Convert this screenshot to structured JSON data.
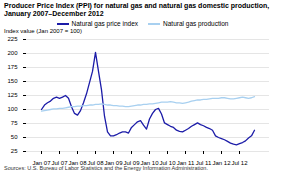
{
  "chart_data": {
    "type": "line",
    "title": "Producer Price Index (PPI) for natural gas and natural gas domestic production,",
    "subtitle": "January 2007–December 2012",
    "ylabel": "Index value (Jan 2007 = 100)",
    "source": "Sources:  U.S. Bureau of Labor Statistics and the Energy Information Administration.",
    "categories": [
      "Jan 07",
      null,
      null,
      null,
      null,
      null,
      "Jul 07",
      null,
      null,
      null,
      null,
      null,
      "Jan 08",
      null,
      null,
      null,
      null,
      null,
      "Jul 08",
      null,
      null,
      null,
      null,
      null,
      "Jan 09",
      null,
      null,
      null,
      null,
      null,
      "Jul 09",
      null,
      null,
      null,
      null,
      null,
      "Jan 10",
      null,
      null,
      null,
      null,
      null,
      "Jul 10",
      null,
      null,
      null,
      null,
      null,
      "Jan 11",
      null,
      null,
      null,
      null,
      null,
      "Jul 11",
      null,
      null,
      null,
      null,
      null,
      "Jan 12",
      null,
      null,
      null,
      null,
      null,
      "Jul 12",
      null,
      null,
      null,
      null,
      null
    ],
    "series": [
      {
        "name": "Natural gas price index",
        "color": "#1c1ca8",
        "values": [
          100,
          108,
          112,
          115,
          120,
          122,
          120,
          122,
          125,
          120,
          105,
          93,
          90,
          98,
          112,
          128,
          148,
          168,
          202,
          168,
          135,
          88,
          60,
          53,
          53,
          55,
          58,
          60,
          60,
          58,
          68,
          73,
          78,
          80,
          72,
          65,
          83,
          93,
          100,
          102,
          92,
          76,
          73,
          70,
          68,
          63,
          61,
          60,
          63,
          66,
          70,
          73,
          76,
          73,
          71,
          68,
          66,
          63,
          53,
          50,
          48,
          46,
          43,
          40,
          38,
          37,
          39,
          41,
          44,
          49,
          53,
          63
        ]
      },
      {
        "name": "Natural gas production",
        "color": "#a8d0f0",
        "values": [
          97,
          98,
          99,
          100,
          101,
          101,
          102,
          102,
          103,
          104,
          105,
          105,
          106,
          106,
          107,
          107,
          108,
          108,
          109,
          109,
          110,
          109,
          108,
          108,
          107,
          107,
          106,
          106,
          105,
          105,
          106,
          107,
          108,
          108,
          109,
          109,
          110,
          110,
          111,
          112,
          113,
          113,
          113,
          114,
          113,
          112,
          112,
          111,
          112,
          113,
          115,
          116,
          117,
          117,
          118,
          118,
          119,
          120,
          120,
          120,
          121,
          121,
          120,
          119,
          119,
          120,
          121,
          122,
          121,
          120,
          121,
          123
        ]
      }
    ],
    "ylim": [
      25,
      225
    ],
    "yticks": [
      25,
      50,
      75,
      100,
      125,
      150,
      175,
      200,
      225
    ],
    "grid": true,
    "legend": "top"
  }
}
